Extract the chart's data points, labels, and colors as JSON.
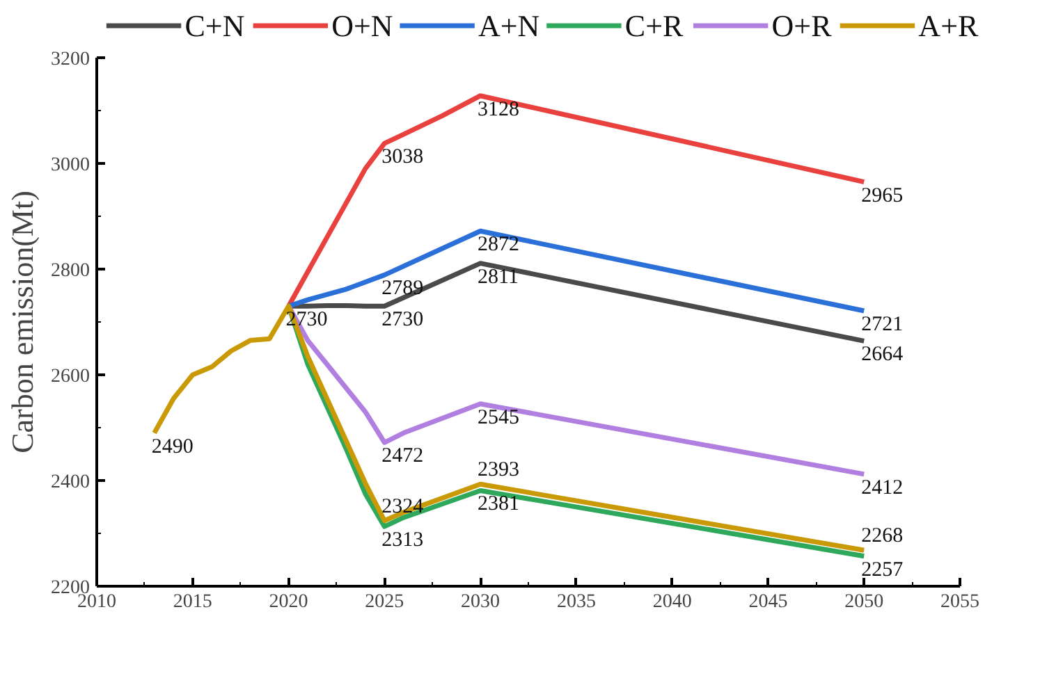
{
  "chart_data": {
    "type": "line",
    "ylabel": "Carbon emission(Mt)",
    "xlim": [
      2010,
      2055
    ],
    "xticks": [
      2010,
      2015,
      2020,
      2025,
      2030,
      2035,
      2040,
      2045,
      2050,
      2055
    ],
    "ylim": [
      2200,
      3200
    ],
    "yticks": [
      2200,
      2400,
      2600,
      2800,
      3000,
      3200
    ],
    "grid": false,
    "legend": "top",
    "marker": "none",
    "line_style": "solid",
    "series": [
      {
        "name": "C+N",
        "color": "#4a4a4a",
        "x": [
          2020,
          2021,
          2022,
          2023,
          2024,
          2025,
          2030,
          2050
        ],
        "values": [
          2730,
          2730,
          2731,
          2731,
          2730,
          2730,
          2811,
          2664
        ],
        "value_labels": [
          "2730",
          null,
          null,
          null,
          null,
          "2730",
          "2811",
          "2664"
        ]
      },
      {
        "name": "O+N",
        "color": "#e8413e",
        "x": [
          2020,
          2022,
          2024,
          2025,
          2026,
          2028,
          2030,
          2050
        ],
        "values": [
          2730,
          2860,
          2990,
          3038,
          3055,
          3090,
          3128,
          2965
        ],
        "value_labels": [
          null,
          null,
          null,
          "3038",
          null,
          null,
          "3128",
          "2965"
        ]
      },
      {
        "name": "A+N",
        "color": "#2b6fd8",
        "x": [
          2020,
          2021,
          2023,
          2025,
          2030,
          2050
        ],
        "values": [
          2730,
          2742,
          2762,
          2789,
          2872,
          2721
        ],
        "value_labels": [
          null,
          null,
          null,
          "2789",
          "2872",
          "2721"
        ]
      },
      {
        "name": "C+R",
        "color": "#2ea85a",
        "x": [
          2020,
          2021,
          2022,
          2023,
          2024,
          2025,
          2026,
          2030,
          2050
        ],
        "values": [
          2730,
          2620,
          2540,
          2460,
          2375,
          2313,
          2330,
          2381,
          2257
        ],
        "value_labels": [
          null,
          null,
          null,
          null,
          null,
          "2313",
          null,
          "2381",
          "2257"
        ]
      },
      {
        "name": "O+R",
        "color": "#b07fe0",
        "x": [
          2020,
          2021,
          2022,
          2023,
          2024,
          2025,
          2026,
          2030,
          2050
        ],
        "values": [
          2730,
          2665,
          2620,
          2575,
          2530,
          2472,
          2490,
          2545,
          2412
        ],
        "value_labels": [
          null,
          null,
          null,
          null,
          null,
          "2472",
          null,
          "2545",
          "2412"
        ]
      },
      {
        "name": "A+R",
        "color": "#c99a06",
        "x": [
          2013,
          2014,
          2015,
          2016,
          2017,
          2018,
          2019,
          2020,
          2021,
          2022,
          2023,
          2024,
          2025,
          2026,
          2030,
          2050
        ],
        "values": [
          2490,
          2555,
          2600,
          2615,
          2645,
          2665,
          2668,
          2730,
          2635,
          2555,
          2475,
          2395,
          2324,
          2340,
          2393,
          2268
        ],
        "value_labels": [
          "2490",
          null,
          null,
          null,
          null,
          null,
          null,
          null,
          null,
          null,
          null,
          null,
          "2324",
          null,
          "2393",
          "2268"
        ]
      }
    ]
  }
}
